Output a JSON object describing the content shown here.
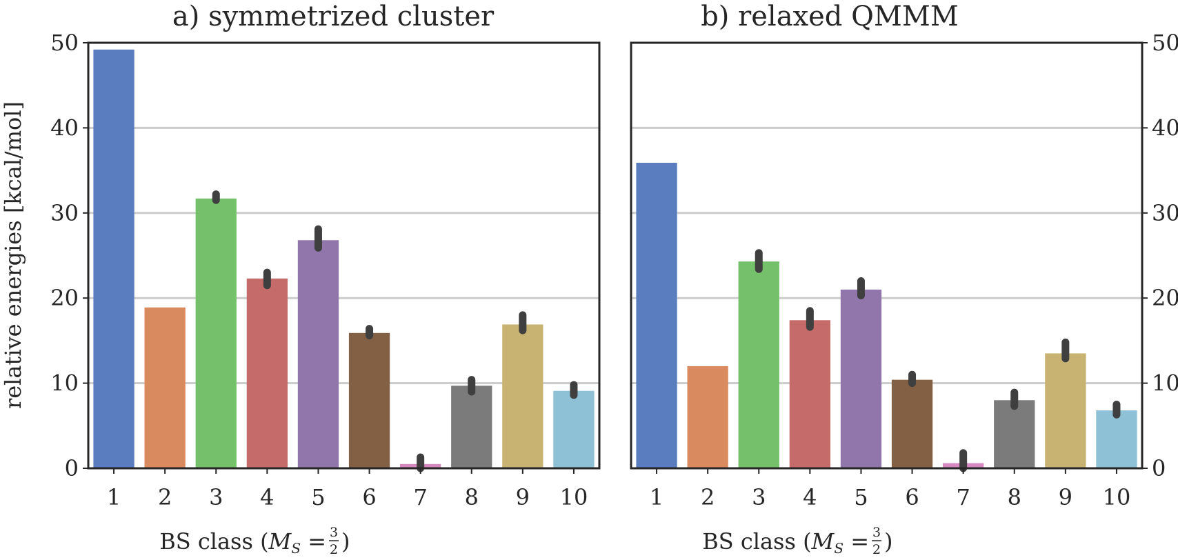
{
  "chart_data": [
    {
      "type": "bar",
      "title": "a) symmetrized cluster",
      "xlabel_prefix": "BS class (",
      "xlabel_var": "M",
      "xlabel_sub": "S",
      "xlabel_eq": " = ",
      "xlabel_frac_num": "3",
      "xlabel_frac_den": "2",
      "xlabel_suffix": ")",
      "ylabel": "relative energies [kcal/mol]",
      "ylim": [
        0,
        50
      ],
      "yticks": [
        0,
        10,
        20,
        30,
        40,
        50
      ],
      "y_axis_side": "left",
      "grid": "horizontal",
      "categories": [
        "1",
        "2",
        "3",
        "4",
        "5",
        "6",
        "7",
        "8",
        "9",
        "10"
      ],
      "values": [
        49.2,
        18.9,
        31.7,
        22.3,
        26.8,
        15.9,
        0.5,
        9.7,
        16.9,
        9.1
      ],
      "errors": [
        null,
        null,
        [
          31.5,
          32.2
        ],
        [
          21.5,
          23.0
        ],
        [
          25.9,
          28.1
        ],
        [
          15.6,
          16.4
        ],
        [
          0.0,
          1.3
        ],
        [
          9.0,
          10.4
        ],
        [
          16.2,
          18.0
        ],
        [
          8.6,
          9.8
        ]
      ],
      "colors": [
        "#5a7dbf",
        "#d98b5f",
        "#75c16b",
        "#c56b6a",
        "#9176ac",
        "#836044",
        "#d688c0",
        "#7b7b7b",
        "#c8b372",
        "#8ec0d6"
      ]
    },
    {
      "type": "bar",
      "title": "b) relaxed QMMM",
      "xlabel_prefix": "BS class (",
      "xlabel_var": "M",
      "xlabel_sub": "S",
      "xlabel_eq": " = ",
      "xlabel_frac_num": "3",
      "xlabel_frac_den": "2",
      "xlabel_suffix": ")",
      "ylabel": "",
      "ylim": [
        0,
        50
      ],
      "yticks": [
        0,
        10,
        20,
        30,
        40,
        50
      ],
      "y_axis_side": "right",
      "grid": "horizontal",
      "categories": [
        "1",
        "2",
        "3",
        "4",
        "5",
        "6",
        "7",
        "8",
        "9",
        "10"
      ],
      "values": [
        35.9,
        12.0,
        24.3,
        17.4,
        21.0,
        10.4,
        0.6,
        8.0,
        13.5,
        6.8
      ],
      "errors": [
        null,
        null,
        [
          23.4,
          25.3
        ],
        [
          16.6,
          18.5
        ],
        [
          20.3,
          22.0
        ],
        [
          10.0,
          11.0
        ],
        [
          0.0,
          1.8
        ],
        [
          7.3,
          8.9
        ],
        [
          12.9,
          14.8
        ],
        [
          6.3,
          7.5
        ]
      ],
      "colors": [
        "#5a7dbf",
        "#d98b5f",
        "#75c16b",
        "#c56b6a",
        "#9176ac",
        "#836044",
        "#d688c0",
        "#7b7b7b",
        "#c8b372",
        "#8ec0d6"
      ]
    }
  ]
}
